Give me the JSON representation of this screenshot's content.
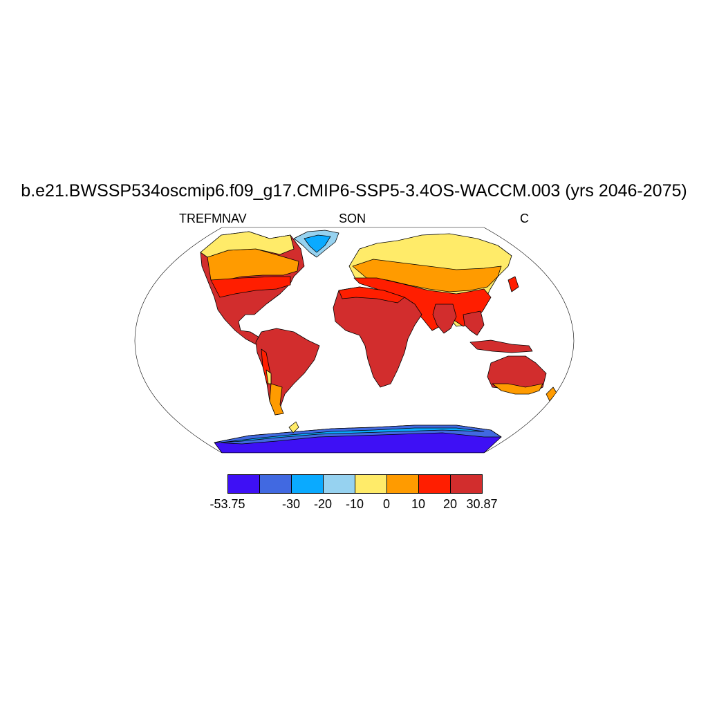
{
  "title": "b.e21.BWSSP534oscmip6.f09_g17.CMIP6-SSP5-3.4OS-WACCM.003 (yrs 2046-2075)",
  "subtitle_left": "TREFMNAV",
  "subtitle_center": "SON",
  "subtitle_right": "C",
  "colorbar": {
    "colors": [
      "#3e10f5",
      "#4169e1",
      "#0aaaff",
      "#96d2f0",
      "#ffeb69",
      "#ff9b00",
      "#ff1e00",
      "#d22d2d"
    ],
    "labels": [
      {
        "text": "-53.75",
        "edge": 0
      },
      {
        "text": "-30",
        "edge": 2
      },
      {
        "text": "-20",
        "edge": 3
      },
      {
        "text": "-10",
        "edge": 4
      },
      {
        "text": "0",
        "edge": 5
      },
      {
        "text": "10",
        "edge": 6
      },
      {
        "text": "20",
        "edge": 7
      },
      {
        "text": "30.87",
        "edge": 8
      }
    ]
  },
  "chart_data": {
    "type": "heatmap",
    "variable": "TREFMNAV",
    "season": "SON",
    "units": "C",
    "projection": "Robinson",
    "levels": [
      -53.75,
      -40,
      -30,
      -20,
      -10,
      0,
      10,
      20,
      30.87
    ],
    "colors": [
      "#3e10f5",
      "#4169e1",
      "#0aaaff",
      "#96d2f0",
      "#ffeb69",
      "#ff9b00",
      "#ff1e00",
      "#d22d2d"
    ]
  }
}
